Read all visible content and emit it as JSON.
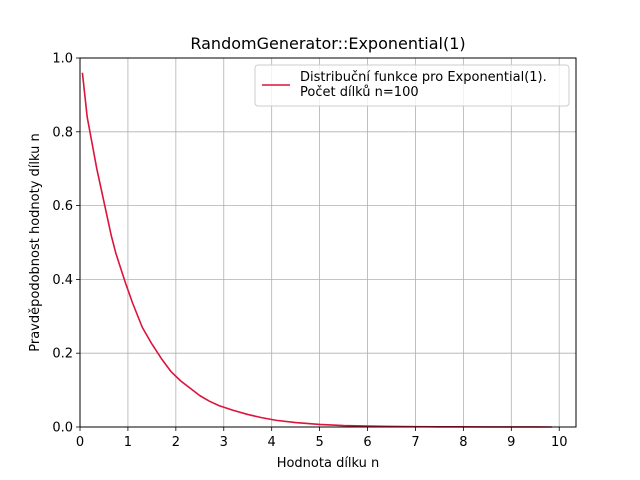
{
  "chart_data": {
    "type": "line",
    "title": "RandomGenerator::Exponential(1)",
    "xlabel": "Hodnota dílku n",
    "ylabel": "Pravděpodobnost hodnoty dílku n",
    "xlim": [
      0,
      10.35
    ],
    "ylim": [
      0,
      1.0
    ],
    "xticks": [
      0,
      1,
      2,
      3,
      4,
      5,
      6,
      7,
      8,
      9,
      10
    ],
    "yticks": [
      0.0,
      0.2,
      0.4,
      0.6,
      0.8,
      1.0
    ],
    "xtick_labels": [
      "0",
      "1",
      "2",
      "3",
      "4",
      "5",
      "6",
      "7",
      "8",
      "9",
      "10"
    ],
    "ytick_labels": [
      "0.0",
      "0.2",
      "0.4",
      "0.6",
      "0.8",
      "1.0"
    ],
    "grid": true,
    "legend_position": "top-right",
    "series": [
      {
        "name": "Distribuční funkce pro Exponential(1).\n Počet dílků n=100",
        "legend_lines": [
          "Distribuční funkce pro Exponential(1).",
          " Počet dílků n=100"
        ],
        "color": "#dc143c",
        "x": [
          0.05,
          0.15,
          0.25,
          0.35,
          0.45,
          0.55,
          0.65,
          0.75,
          0.85,
          0.95,
          1.1,
          1.3,
          1.5,
          1.7,
          1.9,
          2.1,
          2.3,
          2.5,
          2.7,
          2.9,
          3.2,
          3.5,
          3.8,
          4.1,
          4.5,
          5.0,
          5.5,
          6.0,
          6.5,
          7.0,
          7.5,
          8.0,
          8.5,
          9.0,
          9.5,
          9.85
        ],
        "y": [
          0.96,
          0.84,
          0.77,
          0.7,
          0.64,
          0.58,
          0.52,
          0.47,
          0.43,
          0.39,
          0.335,
          0.27,
          0.225,
          0.185,
          0.15,
          0.125,
          0.105,
          0.085,
          0.07,
          0.058,
          0.045,
          0.034,
          0.025,
          0.018,
          0.012,
          0.007,
          0.004,
          0.0025,
          0.0015,
          0.001,
          0.0006,
          0.0004,
          0.0002,
          0.0001,
          0.0001,
          0.0
        ]
      }
    ]
  }
}
